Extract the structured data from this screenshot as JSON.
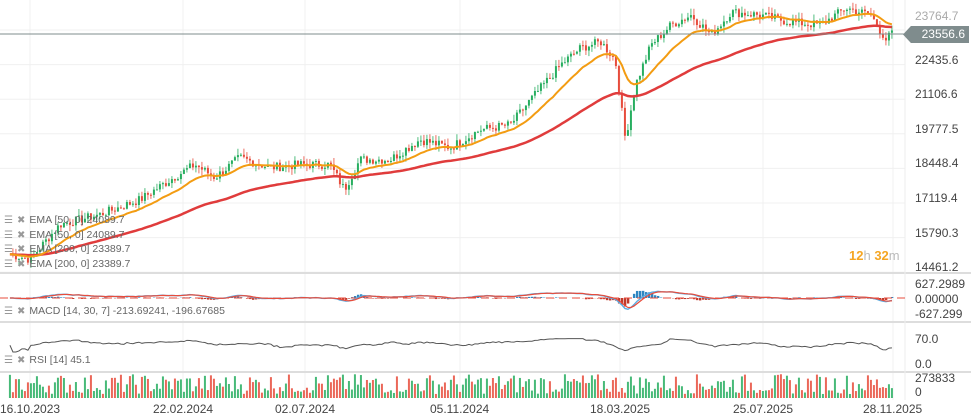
{
  "chart_data": {
    "type": "candlestick",
    "instrument_last_price": "23556.6",
    "y_ticks": [
      "23764.7",
      "22435.6",
      "21106.6",
      "19777.5",
      "18448.4",
      "17119.4",
      "15790.3",
      "14461.2"
    ],
    "ylim": [
      14461.2,
      23764.7
    ],
    "x_ticks": [
      "16.10.2023",
      "22.02.2024",
      "02.07.2024",
      "05.11.2024",
      "18.03.2025",
      "25.07.2025",
      "28.11.2025"
    ],
    "close_approx": [
      [
        "2023-09-28",
        14994
      ],
      [
        "2023-10-16",
        14803
      ],
      [
        "2023-11-12",
        16143
      ],
      [
        "2023-12-18",
        16526
      ],
      [
        "2024-01-23",
        17100
      ],
      [
        "2024-02-19",
        17867
      ],
      [
        "2024-03-12",
        18443
      ],
      [
        "2024-03-30",
        17943
      ],
      [
        "2024-04-21",
        18709
      ],
      [
        "2024-05-18",
        18326
      ],
      [
        "2024-06-14",
        18443
      ],
      [
        "2024-07-11",
        18443
      ],
      [
        "2024-07-24",
        17483
      ],
      [
        "2024-08-07",
        18633
      ],
      [
        "2024-09-03",
        18633
      ],
      [
        "2024-09-30",
        19399
      ],
      [
        "2024-10-27",
        19092
      ],
      [
        "2024-11-23",
        19782
      ],
      [
        "2024-12-20",
        19973
      ],
      [
        "2025-01-07",
        20931
      ],
      [
        "2025-02-03",
        22271
      ],
      [
        "2025-02-21",
        22922
      ],
      [
        "2025-03-11",
        23152
      ],
      [
        "2025-03-24",
        22463
      ],
      [
        "2025-04-02",
        19399
      ],
      [
        "2025-04-11",
        21505
      ],
      [
        "2025-04-25",
        23037
      ],
      [
        "2025-05-13",
        23803
      ],
      [
        "2025-05-31",
        24186
      ],
      [
        "2025-06-18",
        23420
      ],
      [
        "2025-07-06",
        24301
      ],
      [
        "2025-08-01",
        24186
      ],
      [
        "2025-08-28",
        23918
      ],
      [
        "2025-09-24",
        23803
      ],
      [
        "2025-10-17",
        24454
      ],
      [
        "2025-11-08",
        24186
      ],
      [
        "2025-11-22",
        23229
      ],
      [
        "2025-11-28",
        23556.6
      ]
    ],
    "colors": {
      "up": "#27ae60",
      "down": "#e74c3c",
      "ema50": "#f39c12",
      "ema200": "#e03c3c",
      "macd": "#5dade2",
      "signal": "#e74c3c",
      "rsi": "#555555",
      "price_line": "#7f8c8d"
    },
    "grid": true
  },
  "legend": {
    "ema50_a": "EMA  [50,  0]  24089.7",
    "ema50_b": "EMA  [50,  0]  24089.7",
    "ema200_a": "EMA  [200,  0]  23389.7",
    "ema200_b": "EMA  [200,  0]  23389.7",
    "macd": "MACD  [14,  30,  7]  -213.69241,   -196.67685",
    "rsi": "RSI  [14]  45.1"
  },
  "macd_axis": [
    "627.2989",
    "0.00000",
    "-627.299"
  ],
  "rsi_axis": [
    "70.0",
    "0.0"
  ],
  "volume_axis": [
    "273833",
    "0"
  ],
  "timer": {
    "hours": "12",
    "h": "h",
    "minutes": "32",
    "m": "m"
  }
}
